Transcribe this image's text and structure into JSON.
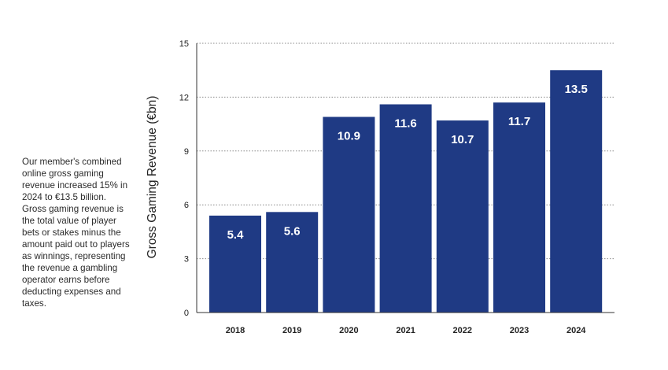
{
  "description": "Our member's combined online gross gaming revenue increased 15% in 2024 to €13.5 billion. Gross gaming revenue is the total value of player bets or stakes minus the amount paid out to players as winnings, representing the revenue a gambling operator earns before deducting expenses and taxes.",
  "colors": {
    "bar": "#1f3a84",
    "bar_label": "#ffffff",
    "grid": "#8a8a8a",
    "axis": "#333333",
    "text": "#222222"
  },
  "chart_data": {
    "type": "bar",
    "title": "",
    "xlabel": "",
    "ylabel": "Gross Gaming Revenue (€bn)",
    "categories": [
      "2018",
      "2019",
      "2020",
      "2021",
      "2022",
      "2023",
      "2024"
    ],
    "values": [
      5.4,
      5.6,
      10.9,
      11.6,
      10.7,
      11.7,
      13.5
    ],
    "value_labels": [
      "5.4",
      "5.6",
      "10.9",
      "11.6",
      "10.7",
      "11.7",
      "13.5"
    ],
    "ylim": [
      0,
      15
    ],
    "yticks": [
      0,
      3,
      6,
      9,
      12,
      15
    ],
    "grid": true,
    "grid_style": "dotted-horizontal",
    "legend": "none"
  }
}
